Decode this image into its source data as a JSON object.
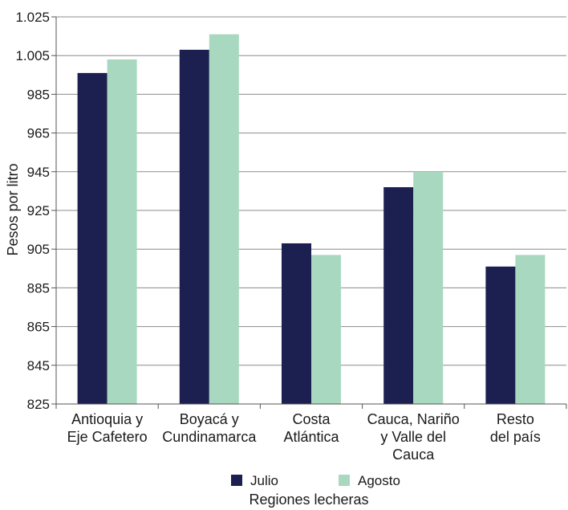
{
  "chart_data": {
    "type": "bar",
    "categories": [
      [
        "Antioquia y",
        "Eje Cafetero"
      ],
      [
        "Boyacá y",
        "Cundinamarca"
      ],
      [
        "Costa",
        "Atlántica"
      ],
      [
        "Cauca, Nariño",
        "y Valle del",
        "Cauca"
      ],
      [
        "Resto",
        "del país"
      ]
    ],
    "series": [
      {
        "name": "Julio",
        "color": "#1b2050",
        "values": [
          996,
          1008,
          908,
          937,
          896
        ]
      },
      {
        "name": "Agosto",
        "color": "#a8d8c0",
        "values": [
          1003,
          1016,
          902,
          945,
          902
        ]
      }
    ],
    "title": "",
    "xlabel": "Regiones lecheras",
    "ylabel": "Pesos por litro",
    "ylim": [
      825,
      1025
    ],
    "yticks": [
      "825",
      "845",
      "865",
      "885",
      "905",
      "925",
      "945",
      "965",
      "985",
      "1.005",
      "1.025"
    ],
    "ytick_values": [
      825,
      845,
      865,
      885,
      905,
      925,
      945,
      965,
      985,
      1005,
      1025
    ],
    "grid": true,
    "legend_position": "bottom",
    "gridline_color": "#8c8c8c"
  }
}
